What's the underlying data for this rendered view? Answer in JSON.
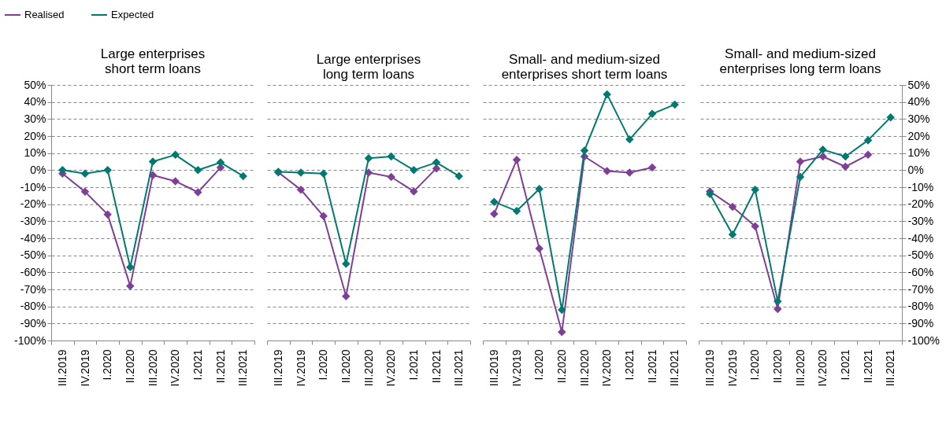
{
  "chart_data": [
    {
      "type": "line",
      "title": "Large enterprises\nshort term loans",
      "categories": [
        "III.2019",
        "IV.2019",
        "I.2020",
        "II.2020",
        "III.2020",
        "IV.2020",
        "I.2021",
        "II.2021",
        "III.2021"
      ],
      "series": [
        {
          "name": "Realised",
          "color": "#7f3f98",
          "values": [
            -2,
            -12.7,
            -26,
            -68,
            -3,
            -6.5,
            -13,
            1.5,
            null
          ]
        },
        {
          "name": "Expected",
          "color": "#007a70",
          "values": [
            0,
            -2,
            0,
            -57,
            5,
            9,
            0,
            4.5,
            -3.5
          ]
        }
      ],
      "ylim": [
        -100,
        50
      ],
      "yticks": [
        {
          "value": -100,
          "label": "-100%"
        },
        {
          "value": -90,
          "label": "-90%"
        },
        {
          "value": -80,
          "label": "-80%"
        },
        {
          "value": -70,
          "label": "-70%"
        },
        {
          "value": -60,
          "label": "-60%"
        },
        {
          "value": -50,
          "label": "-50%"
        },
        {
          "value": -40,
          "label": "-40%"
        },
        {
          "value": -30,
          "label": "-30%"
        },
        {
          "value": -20,
          "label": "-20%"
        },
        {
          "value": -10,
          "label": "-10%"
        },
        {
          "value": 0,
          "label": "0%"
        },
        {
          "value": 10,
          "label": "10%"
        },
        {
          "value": 20,
          "label": "20%"
        },
        {
          "value": 30,
          "label": "30%"
        },
        {
          "value": 40,
          "label": "40%"
        },
        {
          "value": 50,
          "label": "50%"
        }
      ],
      "grid": "y",
      "marker": "diamond",
      "line_style": "solid",
      "legend": "top left"
    },
    {
      "type": "line",
      "title": "Large enterprises\nlong term loans",
      "categories": [
        "III.2019",
        "IV.2019",
        "I.2020",
        "II.2020",
        "III.2020",
        "IV.2020",
        "I.2021",
        "II.2021",
        "III.2021"
      ],
      "series": [
        {
          "name": "Realised",
          "color": "#7f3f98",
          "values": [
            -1.3,
            -11.5,
            -27,
            -74,
            -1.5,
            -4,
            -12.5,
            1,
            null
          ]
        },
        {
          "name": "Expected",
          "color": "#007a70",
          "values": [
            -1,
            -1.5,
            -2,
            -55,
            7,
            8,
            0,
            4.5,
            -3.5
          ]
        }
      ],
      "ylim": [
        -100,
        50
      ],
      "yticks": [
        -100,
        -90,
        -80,
        -70,
        -60,
        -50,
        -40,
        -30,
        -20,
        -10,
        0,
        10,
        20,
        30,
        40,
        50
      ],
      "grid": "y",
      "marker": "diamond",
      "line_style": "solid",
      "tick_labels": "x"
    },
    {
      "type": "line",
      "title": "Small- and medium-sized\nenterprises short term loans",
      "categories": [
        "III.2019",
        "IV.2019",
        "I.2020",
        "II.2020",
        "III.2020",
        "IV.2020",
        "I.2021",
        "II.2021",
        "III.2021"
      ],
      "series": [
        {
          "name": "Realised",
          "color": "#7f3f98",
          "values": [
            -25.7,
            6,
            -46,
            -95,
            8,
            -0.5,
            -1.5,
            1.5,
            null
          ]
        },
        {
          "name": "Expected",
          "color": "#007a70",
          "values": [
            -18.6,
            -24,
            -11,
            -82,
            11.5,
            44.5,
            18,
            33,
            38.5
          ]
        }
      ],
      "ylim": [
        -100,
        50
      ],
      "yticks": [
        -100,
        -90,
        -80,
        -70,
        -60,
        -50,
        -40,
        -30,
        -20,
        -10,
        0,
        10,
        20,
        30,
        40,
        50
      ],
      "grid": "y",
      "marker": "diamond",
      "line_style": "solid",
      "tick_labels": "x"
    },
    {
      "type": "line",
      "title": "Small- and medium-sized\nenterprises long term loans",
      "categories": [
        "III.2019",
        "IV.2019",
        "I.2020",
        "II.2020",
        "III.2020",
        "IV.2020",
        "I.2021",
        "II.2021",
        "III.2021"
      ],
      "series": [
        {
          "name": "Realised",
          "color": "#7f3f98",
          "axis": "y2",
          "values": [
            -12.5,
            -21.5,
            -33,
            -81.5,
            5,
            8,
            2,
            9,
            null
          ]
        },
        {
          "name": "Expected",
          "color": "#007a70",
          "axis": "y2",
          "values": [
            -14,
            -37.8,
            -11.5,
            -77,
            -4,
            12,
            8,
            17.5,
            31
          ]
        }
      ],
      "y2lim": [
        -100,
        50
      ],
      "y2ticks": [
        {
          "value": -100,
          "label": "-100%"
        },
        {
          "value": -90,
          "label": "-90%"
        },
        {
          "value": -80,
          "label": "-80%"
        },
        {
          "value": -70,
          "label": "-70%"
        },
        {
          "value": -60,
          "label": "-60%"
        },
        {
          "value": -50,
          "label": "-50%"
        },
        {
          "value": -40,
          "label": "-40%"
        },
        {
          "value": -30,
          "label": "-30%"
        },
        {
          "value": -20,
          "label": "-20%"
        },
        {
          "value": -10,
          "label": "-10%"
        },
        {
          "value": 0,
          "label": "0%"
        },
        {
          "value": 10,
          "label": "10%"
        },
        {
          "value": 20,
          "label": "20%"
        },
        {
          "value": 30,
          "label": "30%"
        },
        {
          "value": 40,
          "label": "40%"
        },
        {
          "value": 50,
          "label": "50%"
        }
      ],
      "grid": "y",
      "marker": "diamond",
      "line_style": "solid"
    }
  ]
}
